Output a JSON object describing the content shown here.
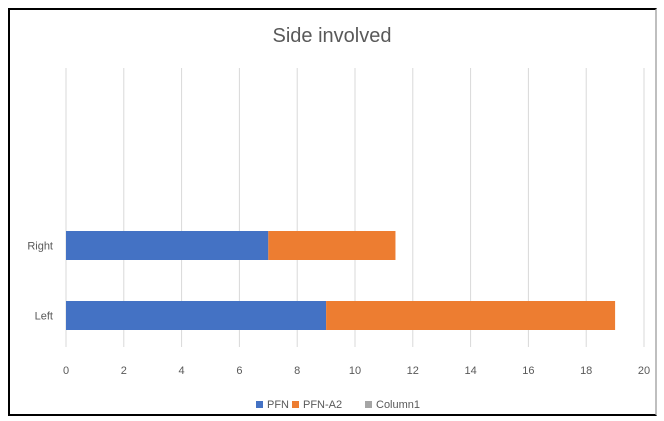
{
  "chart_data": {
    "type": "bar",
    "orientation": "horizontal",
    "stacked": true,
    "title": "Side involved",
    "categories": [
      "Right",
      "Left"
    ],
    "series": [
      {
        "name": "PFN",
        "values": [
          7,
          9
        ],
        "color": "#4472c4"
      },
      {
        "name": "PFN-A2",
        "values": [
          4.4,
          10
        ],
        "color": "#ed7d31"
      },
      {
        "name": "Column1",
        "values": [
          0,
          0
        ],
        "color": "#a5a5a5"
      }
    ],
    "xlim": [
      0,
      20
    ],
    "xticks": [
      "0",
      "2",
      "4",
      "6",
      "8",
      "10",
      "12",
      "14",
      "16",
      "18",
      "20"
    ],
    "grid": "vertical",
    "legend_position": "bottom"
  }
}
